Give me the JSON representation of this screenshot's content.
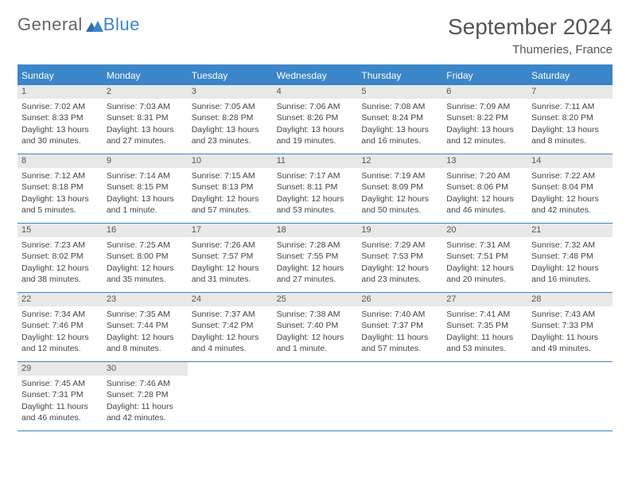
{
  "logo": {
    "text1": "General",
    "text2": "Blue"
  },
  "title": "September 2024",
  "subtitle": "Thumeries, France",
  "colors": {
    "accent": "#3a86c8",
    "dayBarBg": "#e8e8e8",
    "text": "#444444",
    "titleColor": "#555555"
  },
  "weekdays": [
    "Sunday",
    "Monday",
    "Tuesday",
    "Wednesday",
    "Thursday",
    "Friday",
    "Saturday"
  ],
  "labels": {
    "sunrise": "Sunrise:",
    "sunset": "Sunset:",
    "daylight": "Daylight:"
  },
  "weeks": [
    [
      {
        "d": "1",
        "sr": "7:02 AM",
        "ss": "8:33 PM",
        "dl": "13 hours and 30 minutes."
      },
      {
        "d": "2",
        "sr": "7:03 AM",
        "ss": "8:31 PM",
        "dl": "13 hours and 27 minutes."
      },
      {
        "d": "3",
        "sr": "7:05 AM",
        "ss": "8:28 PM",
        "dl": "13 hours and 23 minutes."
      },
      {
        "d": "4",
        "sr": "7:06 AM",
        "ss": "8:26 PM",
        "dl": "13 hours and 19 minutes."
      },
      {
        "d": "5",
        "sr": "7:08 AM",
        "ss": "8:24 PM",
        "dl": "13 hours and 16 minutes."
      },
      {
        "d": "6",
        "sr": "7:09 AM",
        "ss": "8:22 PM",
        "dl": "13 hours and 12 minutes."
      },
      {
        "d": "7",
        "sr": "7:11 AM",
        "ss": "8:20 PM",
        "dl": "13 hours and 8 minutes."
      }
    ],
    [
      {
        "d": "8",
        "sr": "7:12 AM",
        "ss": "8:18 PM",
        "dl": "13 hours and 5 minutes."
      },
      {
        "d": "9",
        "sr": "7:14 AM",
        "ss": "8:15 PM",
        "dl": "13 hours and 1 minute."
      },
      {
        "d": "10",
        "sr": "7:15 AM",
        "ss": "8:13 PM",
        "dl": "12 hours and 57 minutes."
      },
      {
        "d": "11",
        "sr": "7:17 AM",
        "ss": "8:11 PM",
        "dl": "12 hours and 53 minutes."
      },
      {
        "d": "12",
        "sr": "7:19 AM",
        "ss": "8:09 PM",
        "dl": "12 hours and 50 minutes."
      },
      {
        "d": "13",
        "sr": "7:20 AM",
        "ss": "8:06 PM",
        "dl": "12 hours and 46 minutes."
      },
      {
        "d": "14",
        "sr": "7:22 AM",
        "ss": "8:04 PM",
        "dl": "12 hours and 42 minutes."
      }
    ],
    [
      {
        "d": "15",
        "sr": "7:23 AM",
        "ss": "8:02 PM",
        "dl": "12 hours and 38 minutes."
      },
      {
        "d": "16",
        "sr": "7:25 AM",
        "ss": "8:00 PM",
        "dl": "12 hours and 35 minutes."
      },
      {
        "d": "17",
        "sr": "7:26 AM",
        "ss": "7:57 PM",
        "dl": "12 hours and 31 minutes."
      },
      {
        "d": "18",
        "sr": "7:28 AM",
        "ss": "7:55 PM",
        "dl": "12 hours and 27 minutes."
      },
      {
        "d": "19",
        "sr": "7:29 AM",
        "ss": "7:53 PM",
        "dl": "12 hours and 23 minutes."
      },
      {
        "d": "20",
        "sr": "7:31 AM",
        "ss": "7:51 PM",
        "dl": "12 hours and 20 minutes."
      },
      {
        "d": "21",
        "sr": "7:32 AM",
        "ss": "7:48 PM",
        "dl": "12 hours and 16 minutes."
      }
    ],
    [
      {
        "d": "22",
        "sr": "7:34 AM",
        "ss": "7:46 PM",
        "dl": "12 hours and 12 minutes."
      },
      {
        "d": "23",
        "sr": "7:35 AM",
        "ss": "7:44 PM",
        "dl": "12 hours and 8 minutes."
      },
      {
        "d": "24",
        "sr": "7:37 AM",
        "ss": "7:42 PM",
        "dl": "12 hours and 4 minutes."
      },
      {
        "d": "25",
        "sr": "7:38 AM",
        "ss": "7:40 PM",
        "dl": "12 hours and 1 minute."
      },
      {
        "d": "26",
        "sr": "7:40 AM",
        "ss": "7:37 PM",
        "dl": "11 hours and 57 minutes."
      },
      {
        "d": "27",
        "sr": "7:41 AM",
        "ss": "7:35 PM",
        "dl": "11 hours and 53 minutes."
      },
      {
        "d": "28",
        "sr": "7:43 AM",
        "ss": "7:33 PM",
        "dl": "11 hours and 49 minutes."
      }
    ],
    [
      {
        "d": "29",
        "sr": "7:45 AM",
        "ss": "7:31 PM",
        "dl": "11 hours and 46 minutes."
      },
      {
        "d": "30",
        "sr": "7:46 AM",
        "ss": "7:28 PM",
        "dl": "11 hours and 42 minutes."
      },
      null,
      null,
      null,
      null,
      null
    ]
  ]
}
